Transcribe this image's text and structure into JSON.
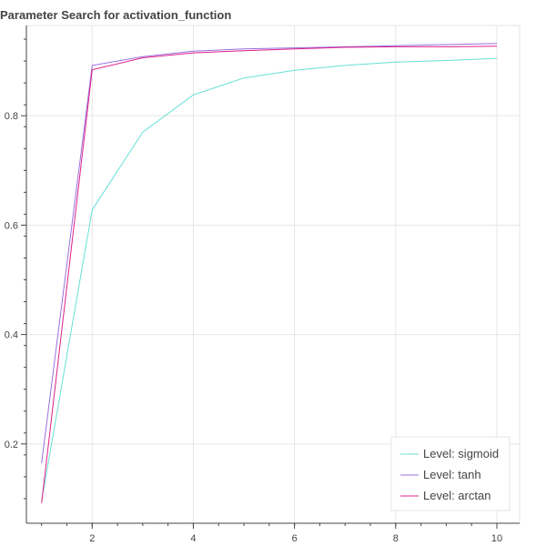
{
  "chart_data": {
    "type": "line",
    "title": "Parameter Search for activation_function",
    "xlabel": "",
    "ylabel": "",
    "xlim": [
      0.7,
      10.45
    ],
    "ylim": [
      0.055,
      0.965
    ],
    "x_ticks": [
      2,
      4,
      6,
      8,
      10
    ],
    "y_ticks": [
      0.2,
      0.4,
      0.6,
      0.8
    ],
    "grid": true,
    "legend_position": "bottom-right",
    "x": [
      1,
      2,
      3,
      4,
      5,
      6,
      7,
      8,
      9,
      10
    ],
    "series": [
      {
        "name": "Level: sigmoid",
        "color": "#66e0d6",
        "values": [
          0.095,
          0.628,
          0.77,
          0.838,
          0.869,
          0.883,
          0.892,
          0.898,
          0.901,
          0.905
        ]
      },
      {
        "name": "Level: tanh",
        "color": "#9b6fe0",
        "values": [
          0.165,
          0.892,
          0.908,
          0.918,
          0.922,
          0.924,
          0.926,
          0.928,
          0.93,
          0.932
        ]
      },
      {
        "name": "Level: arctan",
        "color": "#e0218a",
        "values": [
          0.092,
          0.884,
          0.906,
          0.915,
          0.919,
          0.922,
          0.925,
          0.926,
          0.926,
          0.927
        ]
      }
    ]
  }
}
